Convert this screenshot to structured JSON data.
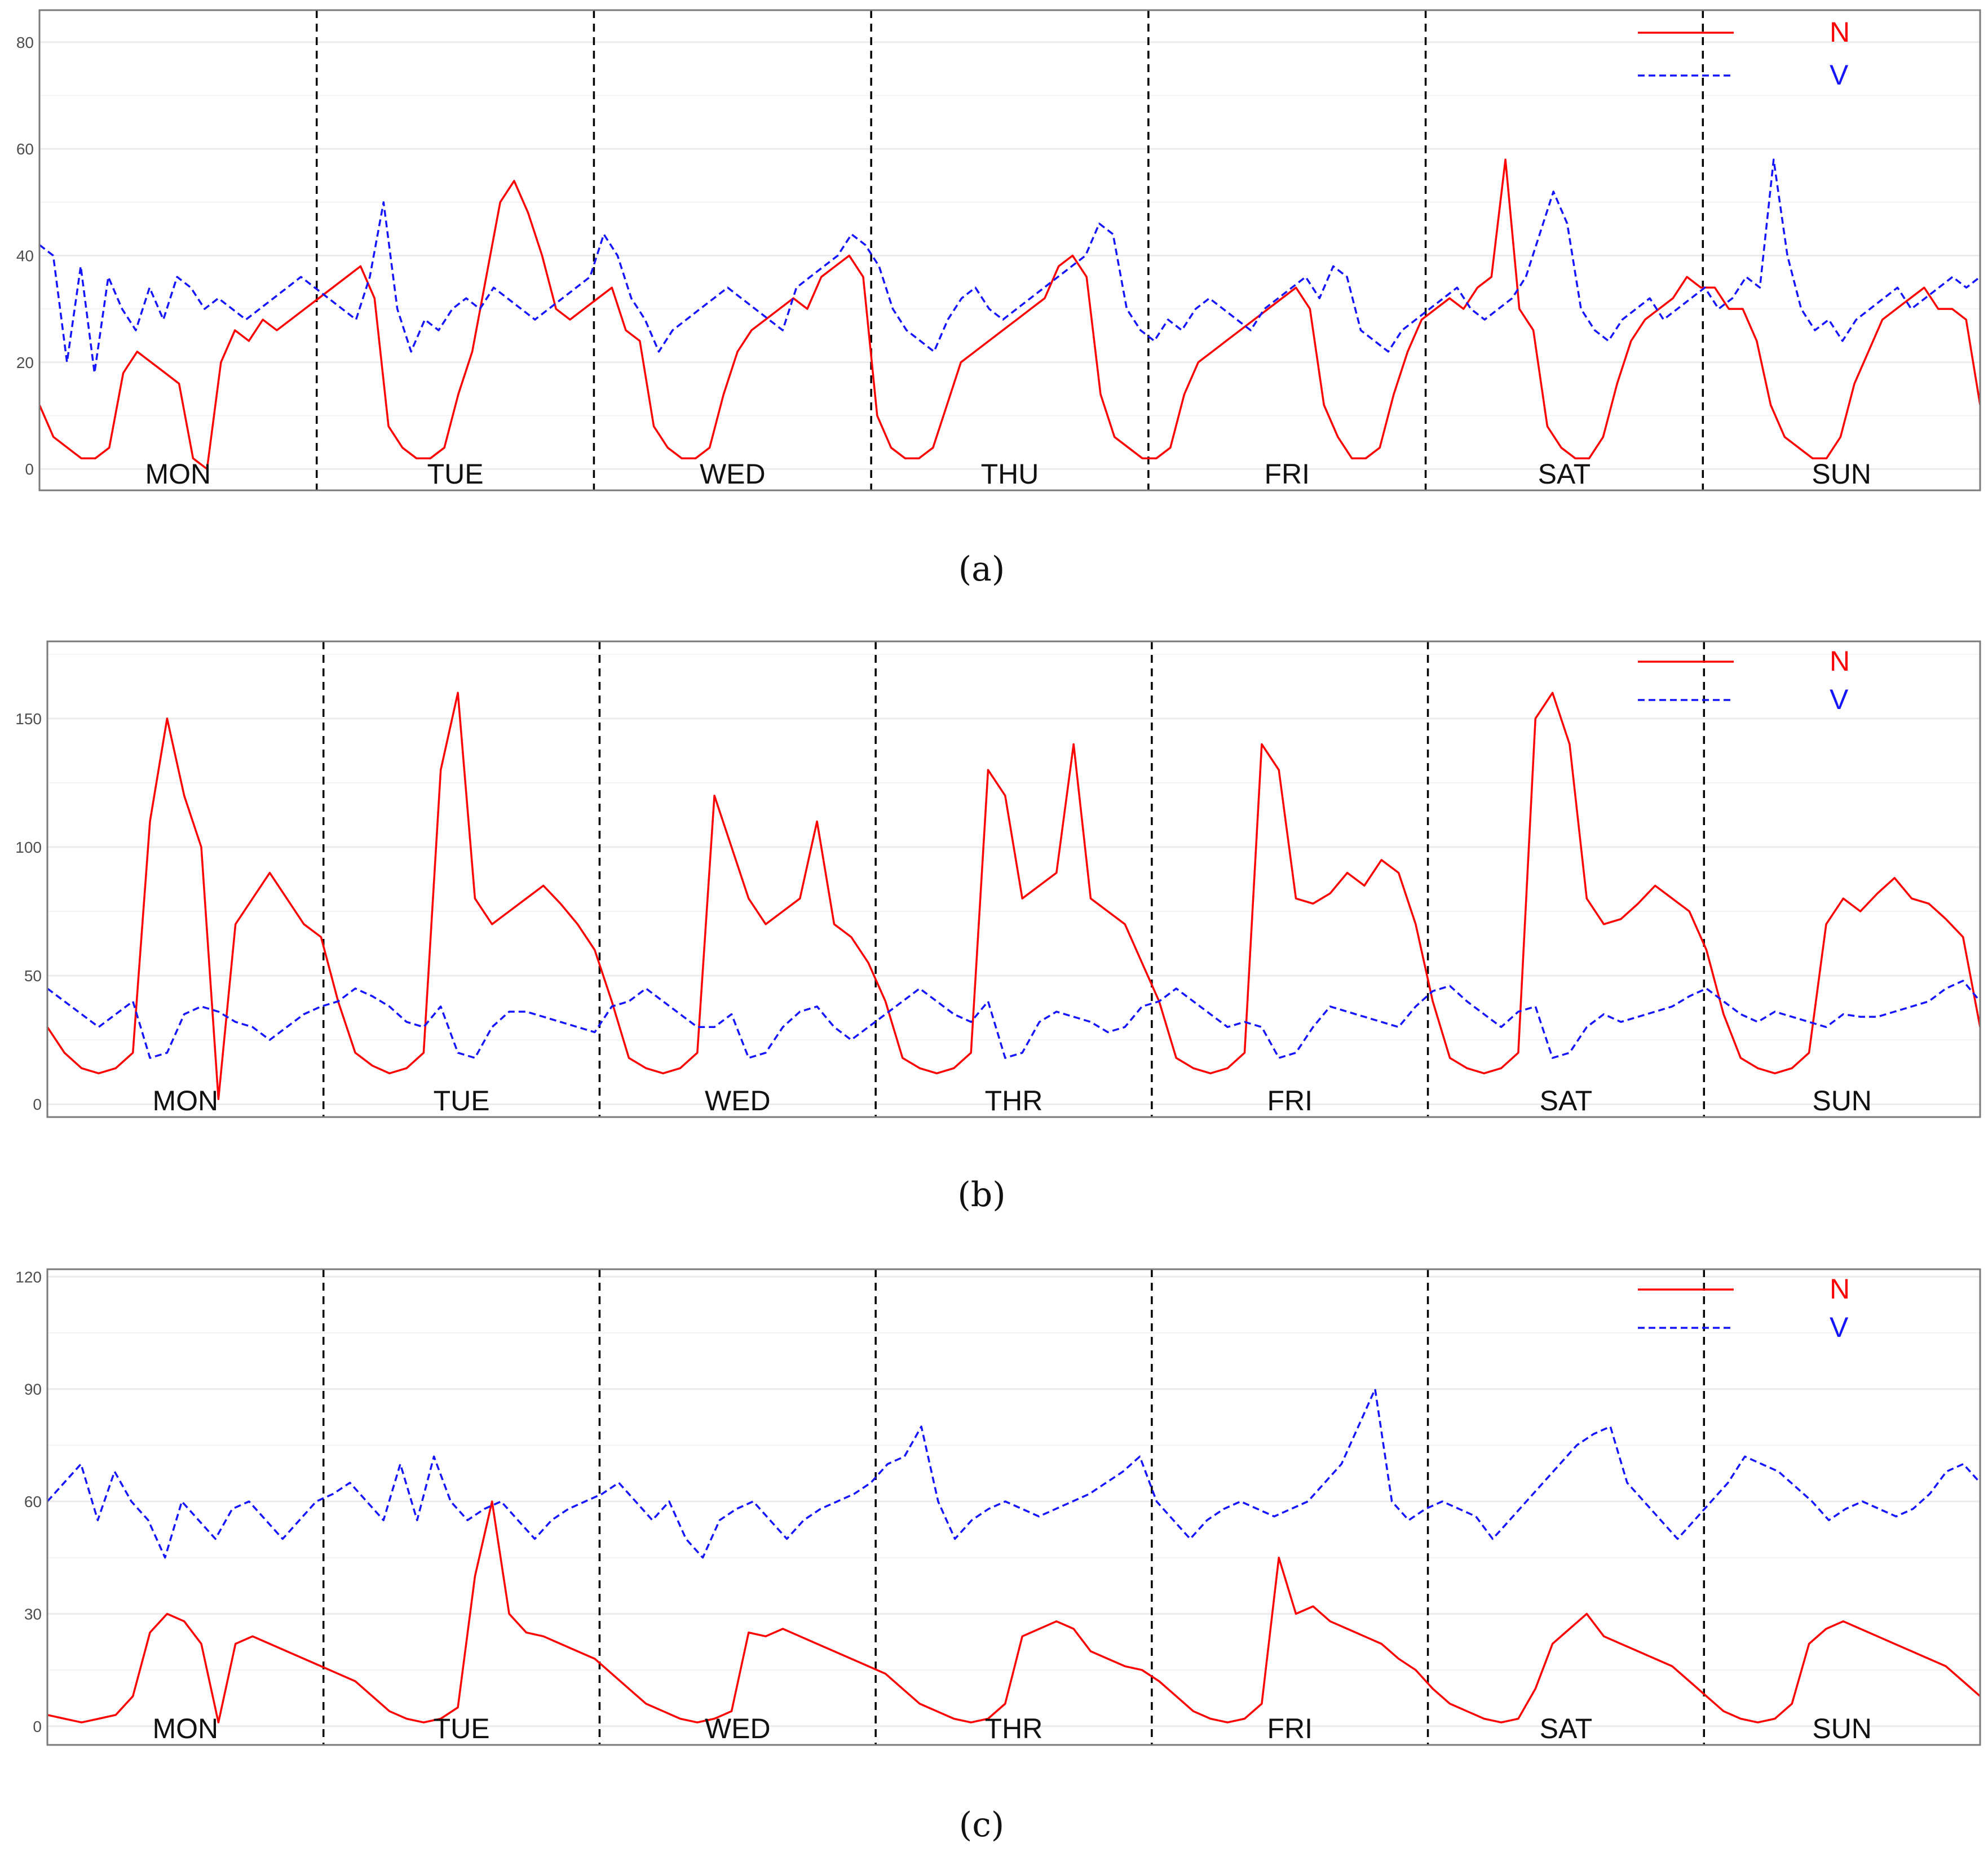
{
  "legend": {
    "n_label": "N",
    "v_label": "V",
    "n_color": "#ff0000",
    "v_color": "#1515ff"
  },
  "chart_data": [
    {
      "type": "line",
      "caption": "(a)",
      "days": [
        "MON",
        "TUE",
        "WED",
        "THU",
        "FRI",
        "SAT",
        "SUN"
      ],
      "ylim": [
        -4,
        86
      ],
      "yticks": [
        0,
        20,
        40,
        60,
        80
      ],
      "series": [
        {
          "name": "N",
          "style": "solid",
          "values": [
            12,
            6,
            4,
            2,
            2,
            4,
            18,
            22,
            20,
            18,
            16,
            2,
            0,
            20,
            26,
            24,
            28,
            26,
            28,
            30,
            32,
            34,
            36,
            38,
            32,
            8,
            4,
            2,
            2,
            4,
            14,
            22,
            36,
            50,
            54,
            48,
            40,
            30,
            28,
            30,
            32,
            34,
            26,
            24,
            8,
            4,
            2,
            2,
            4,
            14,
            22,
            26,
            28,
            30,
            32,
            30,
            36,
            38,
            40,
            36,
            10,
            4,
            2,
            2,
            4,
            12,
            20,
            22,
            24,
            26,
            28,
            30,
            32,
            38,
            40,
            36,
            14,
            6,
            4,
            2,
            2,
            4,
            14,
            20,
            22,
            24,
            26,
            28,
            30,
            32,
            34,
            30,
            12,
            6,
            2,
            2,
            4,
            14,
            22,
            28,
            30,
            32,
            30,
            34,
            36,
            58,
            30,
            26,
            8,
            4,
            2,
            2,
            6,
            16,
            24,
            28,
            30,
            32,
            36,
            34,
            34,
            30,
            30,
            24,
            12,
            6,
            4,
            2,
            2,
            6,
            16,
            22,
            28,
            30,
            32,
            34,
            30,
            30,
            28,
            12
          ]
        },
        {
          "name": "V",
          "style": "dashed",
          "values": [
            42,
            40,
            20,
            38,
            18,
            36,
            30,
            26,
            34,
            28,
            36,
            34,
            30,
            32,
            30,
            28,
            30,
            32,
            34,
            36,
            34,
            32,
            30,
            28,
            36,
            50,
            30,
            22,
            28,
            26,
            30,
            32,
            30,
            34,
            32,
            30,
            28,
            30,
            32,
            34,
            36,
            44,
            40,
            32,
            28,
            22,
            26,
            28,
            30,
            32,
            34,
            32,
            30,
            28,
            26,
            34,
            36,
            38,
            40,
            44,
            42,
            38,
            30,
            26,
            24,
            22,
            28,
            32,
            34,
            30,
            28,
            30,
            32,
            34,
            36,
            38,
            40,
            46,
            44,
            30,
            26,
            24,
            28,
            26,
            30,
            32,
            30,
            28,
            26,
            30,
            32,
            34,
            36,
            32,
            38,
            36,
            26,
            24,
            22,
            26,
            28,
            30,
            32,
            34,
            30,
            28,
            30,
            32,
            36,
            44,
            52,
            46,
            30,
            26,
            24,
            28,
            30,
            32,
            28,
            30,
            32,
            34,
            30,
            32,
            36,
            34,
            58,
            40,
            30,
            26,
            28,
            24,
            28,
            30,
            32,
            34,
            30,
            32,
            34,
            36,
            34,
            36
          ]
        }
      ]
    },
    {
      "type": "line",
      "caption": "(b)",
      "days": [
        "MON",
        "TUE",
        "WED",
        "THR",
        "FRI",
        "SAT",
        "SUN"
      ],
      "ylim": [
        -5,
        180
      ],
      "yticks": [
        0,
        50,
        100,
        150
      ],
      "series": [
        {
          "name": "N",
          "style": "solid",
          "values": [
            30,
            20,
            14,
            12,
            14,
            20,
            110,
            150,
            120,
            100,
            2,
            70,
            80,
            90,
            80,
            70,
            65,
            40,
            20,
            15,
            12,
            14,
            20,
            130,
            160,
            80,
            70,
            75,
            80,
            85,
            78,
            70,
            60,
            40,
            18,
            14,
            12,
            14,
            20,
            120,
            100,
            80,
            70,
            75,
            80,
            110,
            70,
            65,
            55,
            40,
            18,
            14,
            12,
            14,
            20,
            130,
            120,
            80,
            85,
            90,
            140,
            80,
            75,
            70,
            55,
            40,
            18,
            14,
            12,
            14,
            20,
            140,
            130,
            80,
            78,
            82,
            90,
            85,
            95,
            90,
            70,
            40,
            18,
            14,
            12,
            14,
            20,
            150,
            160,
            140,
            80,
            70,
            72,
            78,
            85,
            80,
            75,
            60,
            35,
            18,
            14,
            12,
            14,
            20,
            70,
            80,
            75,
            82,
            88,
            80,
            78,
            72,
            65,
            30
          ]
        },
        {
          "name": "V",
          "style": "dashed",
          "values": [
            45,
            40,
            35,
            30,
            35,
            40,
            18,
            20,
            35,
            38,
            36,
            32,
            30,
            25,
            30,
            35,
            38,
            40,
            45,
            42,
            38,
            32,
            30,
            38,
            20,
            18,
            30,
            36,
            36,
            34,
            32,
            30,
            28,
            38,
            40,
            45,
            40,
            35,
            30,
            30,
            35,
            18,
            20,
            30,
            36,
            38,
            30,
            25,
            30,
            35,
            40,
            45,
            40,
            35,
            32,
            40,
            18,
            20,
            32,
            36,
            34,
            32,
            28,
            30,
            38,
            40,
            45,
            40,
            35,
            30,
            32,
            30,
            18,
            20,
            30,
            38,
            36,
            34,
            32,
            30,
            38,
            44,
            46,
            40,
            35,
            30,
            36,
            38,
            18,
            20,
            30,
            35,
            32,
            34,
            36,
            38,
            42,
            45,
            40,
            35,
            32,
            36,
            34,
            32,
            30,
            35,
            34,
            34,
            36,
            38,
            40,
            45,
            48,
            40
          ]
        }
      ]
    },
    {
      "type": "line",
      "caption": "(c)",
      "days": [
        "MON",
        "TUE",
        "WED",
        "THR",
        "FRI",
        "SAT",
        "SUN"
      ],
      "ylim": [
        -5,
        122
      ],
      "yticks": [
        0,
        30,
        60,
        90,
        120
      ],
      "series": [
        {
          "name": "N",
          "style": "solid",
          "values": [
            3,
            2,
            1,
            2,
            3,
            8,
            25,
            30,
            28,
            22,
            1,
            22,
            24,
            22,
            20,
            18,
            16,
            14,
            12,
            8,
            4,
            2,
            1,
            2,
            5,
            40,
            60,
            30,
            25,
            24,
            22,
            20,
            18,
            14,
            10,
            6,
            4,
            2,
            1,
            2,
            4,
            25,
            24,
            26,
            24,
            22,
            20,
            18,
            16,
            14,
            10,
            6,
            4,
            2,
            1,
            2,
            6,
            24,
            26,
            28,
            26,
            20,
            18,
            16,
            15,
            12,
            8,
            4,
            2,
            1,
            2,
            6,
            45,
            30,
            32,
            28,
            26,
            24,
            22,
            18,
            15,
            10,
            6,
            4,
            2,
            1,
            2,
            10,
            22,
            26,
            30,
            24,
            22,
            20,
            18,
            16,
            12,
            8,
            4,
            2,
            1,
            2,
            6,
            22,
            26,
            28,
            26,
            24,
            22,
            20,
            18,
            16,
            12,
            8
          ]
        },
        {
          "name": "V",
          "style": "dashed",
          "values": [
            60,
            65,
            70,
            55,
            68,
            60,
            55,
            45,
            60,
            55,
            50,
            58,
            60,
            55,
            50,
            55,
            60,
            62,
            65,
            60,
            55,
            70,
            55,
            72,
            60,
            55,
            58,
            60,
            55,
            50,
            55,
            58,
            60,
            62,
            65,
            60,
            55,
            60,
            50,
            45,
            55,
            58,
            60,
            55,
            50,
            55,
            58,
            60,
            62,
            65,
            70,
            72,
            80,
            60,
            50,
            55,
            58,
            60,
            58,
            56,
            58,
            60,
            62,
            65,
            68,
            72,
            60,
            55,
            50,
            55,
            58,
            60,
            58,
            56,
            58,
            60,
            65,
            70,
            80,
            90,
            60,
            55,
            58,
            60,
            58,
            56,
            50,
            55,
            60,
            65,
            70,
            75,
            78,
            80,
            65,
            60,
            55,
            50,
            55,
            60,
            65,
            72,
            70,
            68,
            64,
            60,
            55,
            58,
            60,
            58,
            56,
            58,
            62,
            68,
            70,
            65
          ]
        }
      ]
    }
  ]
}
